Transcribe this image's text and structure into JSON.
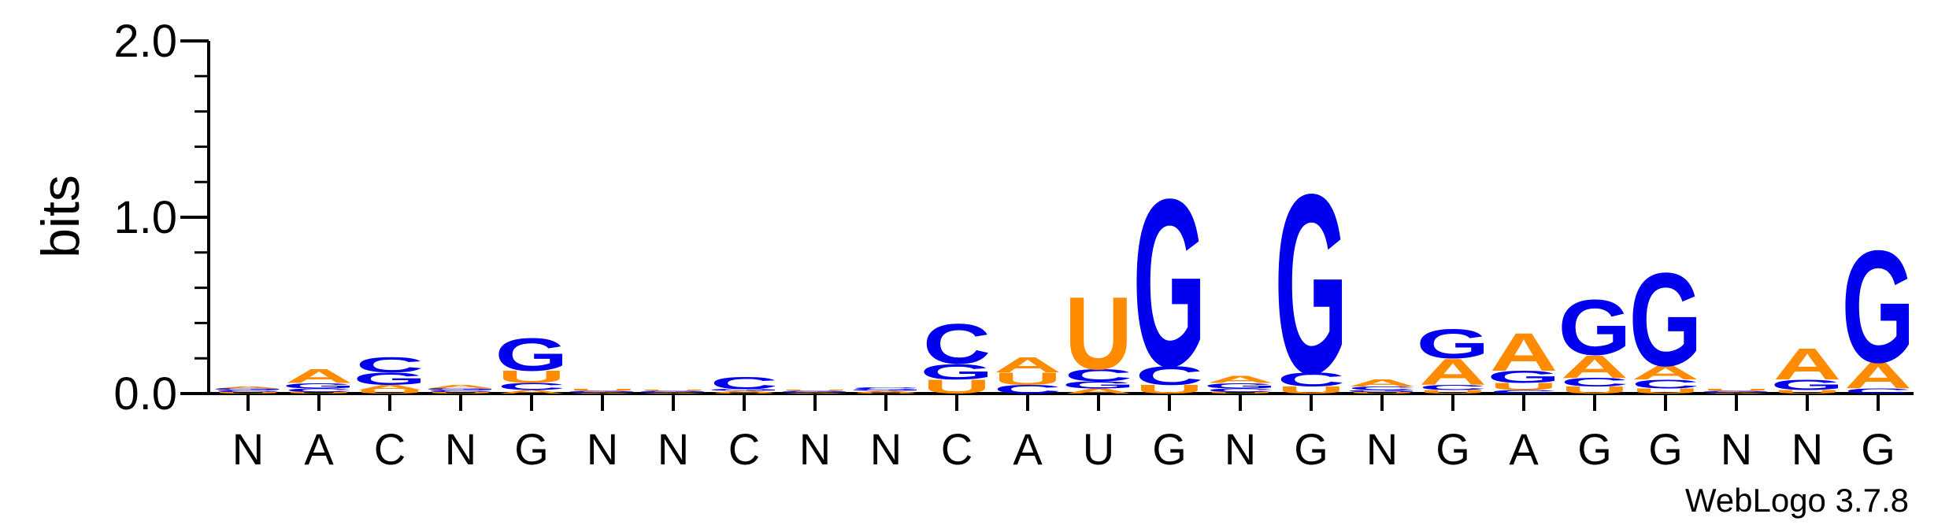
{
  "chart_data": {
    "type": "sequence-logo",
    "ylabel": "bits",
    "ylim": [
      0,
      2.0
    ],
    "yticks": [
      "0.0",
      "1.0",
      "2.0"
    ],
    "colors": {
      "A": "#ff8c00",
      "U": "#ff8c00",
      "C": "#0000ee",
      "G": "#0000ee"
    },
    "categories": [
      "N",
      "A",
      "C",
      "N",
      "G",
      "N",
      "N",
      "C",
      "N",
      "N",
      "C",
      "A",
      "U",
      "G",
      "N",
      "G",
      "N",
      "G",
      "A",
      "G",
      "G",
      "N",
      "N",
      "G"
    ],
    "columns": [
      [
        [
          "U",
          0.01
        ],
        [
          "C",
          0.01
        ],
        [
          "G",
          0.01
        ],
        [
          "A",
          0.01
        ]
      ],
      [
        [
          "U",
          0.01
        ],
        [
          "C",
          0.02
        ],
        [
          "G",
          0.03
        ],
        [
          "A",
          0.08
        ]
      ],
      [
        [
          "U",
          0.02
        ],
        [
          "A",
          0.03
        ],
        [
          "G",
          0.07
        ],
        [
          "C",
          0.09
        ]
      ],
      [
        [
          "U",
          0.01
        ],
        [
          "C",
          0.01
        ],
        [
          "G",
          0.01
        ],
        [
          "A",
          0.02
        ]
      ],
      [
        [
          "A",
          0.02
        ],
        [
          "C",
          0.04
        ],
        [
          "U",
          0.07
        ],
        [
          "G",
          0.19
        ]
      ],
      [
        [
          "A",
          0.005
        ],
        [
          "C",
          0.005
        ],
        [
          "G",
          0.005
        ],
        [
          "U",
          0.01
        ]
      ],
      [
        [
          "A",
          0.005
        ],
        [
          "C",
          0.005
        ],
        [
          "G",
          0.005
        ],
        [
          "U",
          0.005
        ]
      ],
      [
        [
          "U",
          0.005
        ],
        [
          "A",
          0.01
        ],
        [
          "G",
          0.01
        ],
        [
          "C",
          0.07
        ]
      ],
      [
        [
          "A",
          0.005
        ],
        [
          "C",
          0.005
        ],
        [
          "G",
          0.005
        ],
        [
          "U",
          0.005
        ]
      ],
      [
        [
          "U",
          0.005
        ],
        [
          "A",
          0.01
        ],
        [
          "G",
          0.01
        ],
        [
          "C",
          0.01
        ]
      ],
      [
        [
          "U",
          0.08
        ],
        [
          "G",
          0.09
        ],
        [
          "C",
          0.23
        ]
      ],
      [
        [
          "C",
          0.05
        ],
        [
          "U",
          0.07
        ],
        [
          "A",
          0.09
        ]
      ],
      [
        [
          "A",
          0.03
        ],
        [
          "G",
          0.04
        ],
        [
          "C",
          0.07
        ],
        [
          "U",
          0.42
        ]
      ],
      [
        [
          "U",
          0.05
        ],
        [
          "C",
          0.11
        ],
        [
          "G",
          0.97
        ]
      ],
      [
        [
          "U",
          0.01
        ],
        [
          "C",
          0.02
        ],
        [
          "G",
          0.03
        ],
        [
          "A",
          0.04
        ]
      ],
      [
        [
          "U",
          0.04
        ],
        [
          "C",
          0.08
        ],
        [
          "G",
          1.04
        ]
      ],
      [
        [
          "U",
          0.01
        ],
        [
          "G",
          0.01
        ],
        [
          "C",
          0.02
        ],
        [
          "A",
          0.04
        ]
      ],
      [
        [
          "U",
          0.02
        ],
        [
          "C",
          0.03
        ],
        [
          "A",
          0.15
        ],
        [
          "G",
          0.17
        ]
      ],
      [
        [
          "C",
          0.02
        ],
        [
          "U",
          0.04
        ],
        [
          "G",
          0.07
        ],
        [
          "A",
          0.22
        ]
      ],
      [
        [
          "U",
          0.04
        ],
        [
          "C",
          0.05
        ],
        [
          "A",
          0.13
        ],
        [
          "G",
          0.32
        ]
      ],
      [
        [
          "U",
          0.03
        ],
        [
          "C",
          0.05
        ],
        [
          "A",
          0.08
        ],
        [
          "G",
          0.54
        ]
      ],
      [
        [
          "A",
          0.005
        ],
        [
          "C",
          0.005
        ],
        [
          "G",
          0.005
        ],
        [
          "U",
          0.01
        ]
      ],
      [
        [
          "U",
          0.02
        ],
        [
          "G",
          0.06
        ],
        [
          "A",
          0.18
        ]
      ],
      [
        [
          "C",
          0.03
        ],
        [
          "A",
          0.15
        ],
        [
          "G",
          0.65
        ]
      ]
    ]
  },
  "footer": {
    "credit": "WebLogo 3.7.8"
  }
}
